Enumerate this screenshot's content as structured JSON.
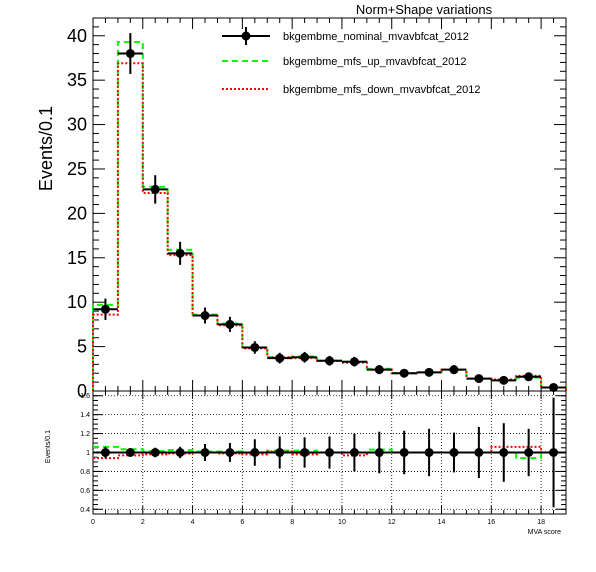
{
  "chart_data": [
    {
      "type": "step",
      "title": "Norm+Shape variations",
      "ylabel": "Events/0.1",
      "xlabel": "",
      "xlim": [
        0,
        19
      ],
      "ylim": [
        0,
        42
      ],
      "y_ticks": [
        "0",
        "5",
        "10",
        "15",
        "20",
        "25",
        "30",
        "35",
        "40"
      ],
      "grid": false,
      "legend_position": "top-center",
      "x": [
        0.5,
        1.5,
        2.5,
        3.5,
        4.5,
        5.5,
        6.5,
        7.5,
        8.5,
        9.5,
        10.5,
        11.5,
        12.5,
        13.5,
        14.5,
        15.5,
        16.5,
        17.5,
        18.5
      ],
      "series": [
        {
          "name": "bkgembme_nominal_mvavbfcat_2012",
          "color": "#000000",
          "style": "points-with-errors",
          "values": [
            9.2,
            38.0,
            22.7,
            15.5,
            8.5,
            7.5,
            4.9,
            3.7,
            3.8,
            3.4,
            3.3,
            2.4,
            2.0,
            2.1,
            2.4,
            1.4,
            1.2,
            1.6,
            0.4
          ],
          "errors": [
            1.2,
            2.3,
            1.6,
            1.3,
            0.9,
            0.85,
            0.7,
            0.6,
            0.6,
            0.55,
            0.55,
            0.5,
            0.45,
            0.45,
            0.5,
            0.4,
            0.35,
            0.4,
            0.25
          ]
        },
        {
          "name": "bkgembme_mfs_up_mvavbfcat_2012",
          "color": "#00ff00",
          "style": "dashed-step",
          "values": [
            9.7,
            39.3,
            23.0,
            15.9,
            8.6,
            7.6,
            4.9,
            3.8,
            3.9,
            3.4,
            3.3,
            2.5,
            2.0,
            2.1,
            2.4,
            1.4,
            1.2,
            1.5,
            0.4
          ]
        },
        {
          "name": "bkgembme_mfs_down_mvavbfcat_2012",
          "color": "#ff0000",
          "style": "dotted-step",
          "values": [
            8.6,
            36.9,
            22.3,
            15.3,
            8.5,
            7.4,
            4.8,
            3.8,
            3.7,
            3.4,
            3.2,
            2.4,
            2.0,
            2.1,
            2.4,
            1.4,
            1.3,
            1.7,
            0.4
          ]
        }
      ]
    },
    {
      "type": "ratio",
      "ylabel": "Events/0.1",
      "xlabel": "MVA score",
      "xlim": [
        0,
        19
      ],
      "ylim": [
        0.35,
        1.65
      ],
      "x_ticks": [
        "0",
        "2",
        "4",
        "6",
        "8",
        "10",
        "12",
        "14",
        "16",
        "18"
      ],
      "y_ticks": [
        "0.4",
        "0.6",
        "0.8",
        "1",
        "1.2",
        "1.4",
        "1.6"
      ],
      "grid": true,
      "x": [
        0.5,
        1.5,
        2.5,
        3.5,
        4.5,
        5.5,
        6.5,
        7.5,
        8.5,
        9.5,
        10.5,
        11.5,
        12.5,
        13.5,
        14.5,
        15.5,
        16.5,
        17.5,
        18.5
      ],
      "nominal": {
        "values": [
          1,
          1,
          1,
          1,
          1,
          1,
          1,
          1,
          1,
          1,
          1,
          1,
          1,
          1,
          1,
          1,
          1,
          1,
          1
        ],
        "errors": [
          0.06,
          0.035,
          0.05,
          0.06,
          0.09,
          0.1,
          0.14,
          0.17,
          0.16,
          0.17,
          0.2,
          0.22,
          0.23,
          0.25,
          0.21,
          0.27,
          0.31,
          0.25,
          0.58
        ]
      },
      "up": [
        1.06,
        1.035,
        1.015,
        1.025,
        1.01,
        1.01,
        1.0,
        1.02,
        1.02,
        1.0,
        1.0,
        1.03,
        1.0,
        1.0,
        1.0,
        1.0,
        1.0,
        0.94,
        1.0
      ],
      "down": [
        0.94,
        0.97,
        0.98,
        0.99,
        1.0,
        0.99,
        0.98,
        1.01,
        0.98,
        1.0,
        0.97,
        1.0,
        1.0,
        1.0,
        1.0,
        1.0,
        1.06,
        1.06,
        1.0
      ]
    }
  ]
}
